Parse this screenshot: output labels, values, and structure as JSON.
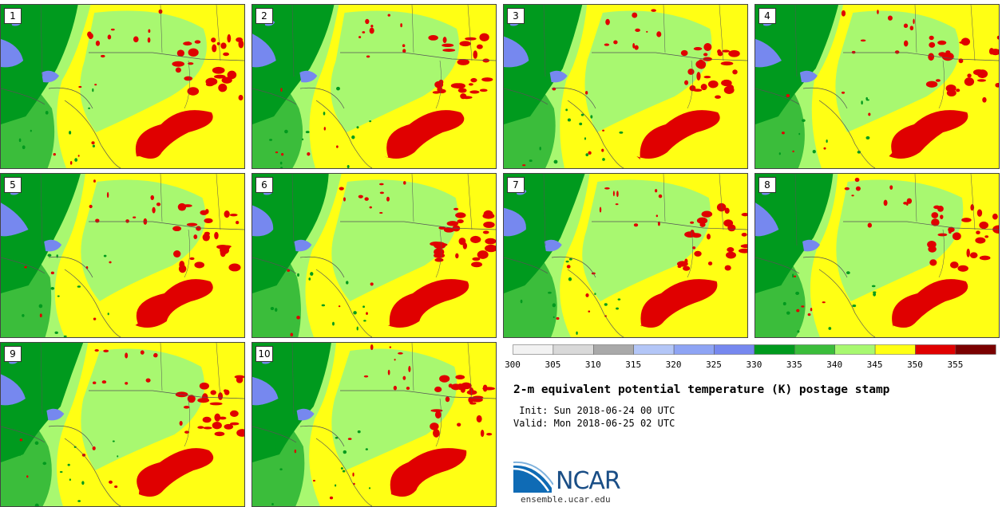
{
  "title": "2-m equivalent potential temperature (K) postage stamp",
  "init": " Init: Sun 2018-06-24 00 UTC",
  "valid": "Valid: Mon 2018-06-25 02 UTC",
  "members": [
    "1",
    "2",
    "3",
    "4",
    "5",
    "6",
    "7",
    "8",
    "9",
    "10"
  ],
  "colorbar": {
    "ticks": [
      "300",
      "305",
      "310",
      "315",
      "320",
      "325",
      "330",
      "335",
      "340",
      "345",
      "350",
      "355"
    ],
    "colors": [
      "#f2f2f2",
      "#d9d9d9",
      "#a9a9a9",
      "#b3c6f7",
      "#8ea4f4",
      "#7688ef",
      "#009a1e",
      "#3bbd3b",
      "#a8f870",
      "#ffff14",
      "#e00000",
      "#7a0000"
    ]
  },
  "map_colors": {
    "yellow": "#ffff14",
    "light_green": "#a8f870",
    "mid_green": "#3bbd3b",
    "dark_green": "#009a1e",
    "blue": "#7688ef",
    "red": "#e00000"
  },
  "logo": {
    "name": "NCAR",
    "url": "ensemble.ucar.edu"
  }
}
